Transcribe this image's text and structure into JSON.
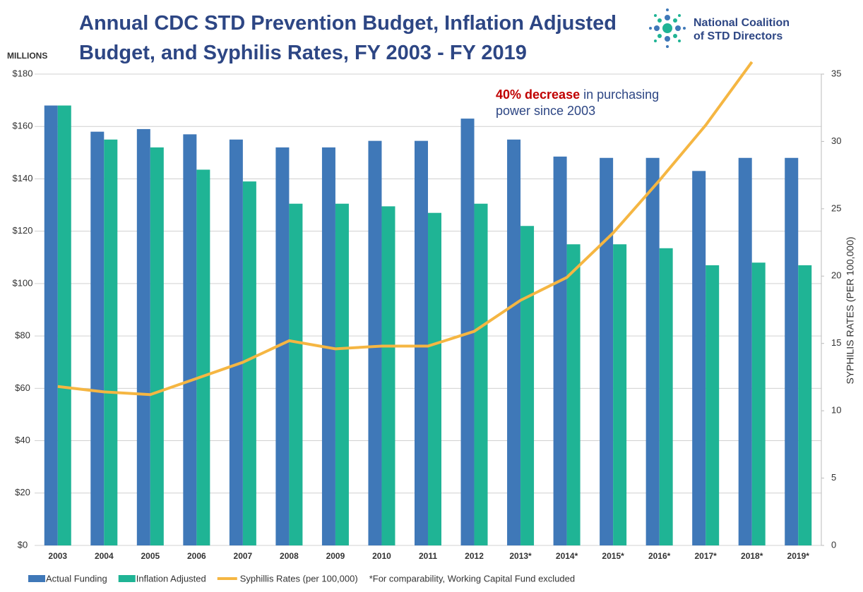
{
  "chart_data": {
    "type": "bar",
    "title_lines": [
      "Annual CDC STD Prevention Budget, Inflation Adjusted",
      "Budget, and Syphilis Rates, FY 2003 - FY 2019"
    ],
    "y_axis_label": "MILLIONS",
    "y2_axis_label": "SYPHILIS RATES (PER 100,000)",
    "logo_lines": [
      "National Coalition",
      "of STD Directors"
    ],
    "annotation": {
      "highlight": "40% decrease",
      "line1": "in purchasing",
      "line2": "power since 2003"
    },
    "footnote": "*For comparability,  Working Capital Fund excluded",
    "categories": [
      "2003",
      "2004",
      "2005",
      "2006",
      "2007",
      "2008",
      "2009",
      "2010",
      "2011",
      "2012",
      "2013*",
      "2014*",
      "2015*",
      "2016*",
      "2017*",
      "2018*",
      "2019*"
    ],
    "series": [
      {
        "name": "Actual Funding",
        "color": "#3f78b8",
        "values": [
          168,
          158,
          159,
          157,
          155,
          152,
          152,
          154.5,
          154.5,
          163,
          155,
          148.5,
          148,
          148,
          143,
          148,
          148
        ]
      },
      {
        "name": "Inflation Adjusted",
        "color": "#1fb495",
        "values": [
          168,
          155,
          152,
          143.5,
          139,
          130.5,
          130.5,
          129.5,
          127,
          130.5,
          122,
          115,
          115,
          113.5,
          107,
          108,
          107
        ]
      },
      {
        "name": "Syphillis Rates (per 100,000)",
        "color": "#f5b642",
        "type": "line",
        "axis": "y2",
        "dash_from_index": 15,
        "values": [
          11.8,
          11.4,
          11.2,
          12.4,
          13.6,
          15.2,
          14.6,
          14.8,
          14.8,
          15.9,
          18.2,
          19.9,
          23.2,
          27.1,
          31.2,
          35.9,
          null
        ]
      }
    ],
    "ylim": [
      0,
      180
    ],
    "yticks": [
      {
        "value": 0,
        "label": "$0"
      },
      {
        "value": 20,
        "label": "$20"
      },
      {
        "value": 40,
        "label": "$40"
      },
      {
        "value": 60,
        "label": "$60"
      },
      {
        "value": 80,
        "label": "$80"
      },
      {
        "value": 100,
        "label": "$100"
      },
      {
        "value": 120,
        "label": "$120"
      },
      {
        "value": 140,
        "label": "$140"
      },
      {
        "value": 160,
        "label": "$160"
      },
      {
        "value": 180,
        "label": "$180"
      }
    ],
    "y2lim": [
      0,
      35
    ],
    "y2ticks": [
      0,
      5,
      10,
      15,
      20,
      25,
      30,
      35
    ],
    "grid": true
  }
}
